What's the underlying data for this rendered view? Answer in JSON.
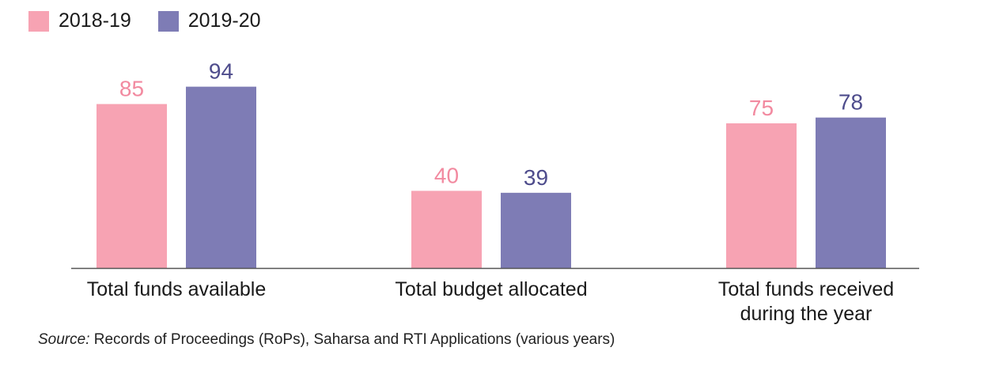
{
  "colors": {
    "series_2018": "#f7a3b3",
    "series_2019": "#7e7cb5",
    "label_2018": "#f28aa0",
    "label_2019": "#4e4c8c",
    "axis": "#555555",
    "text": "#1a1a1a"
  },
  "source": {
    "label": "Source:",
    "text": " Records of Proceedings (RoPs), Saharsa and RTI Applications (various years)"
  },
  "chart_data": {
    "type": "bar",
    "categories": [
      "Total funds available",
      "Total budget allocated",
      "Total funds received during the year"
    ],
    "category_lines": [
      [
        "Total funds available"
      ],
      [
        "Total budget allocated"
      ],
      [
        "Total funds received",
        "during the year"
      ]
    ],
    "series": [
      {
        "name": "2018-19",
        "values": [
          85,
          40,
          75
        ]
      },
      {
        "name": "2019-20",
        "values": [
          94,
          39,
          78
        ]
      }
    ],
    "ylim": [
      0,
      100
    ],
    "grid": false,
    "legend": "top-left",
    "title": "",
    "xlabel": "",
    "ylabel": ""
  }
}
